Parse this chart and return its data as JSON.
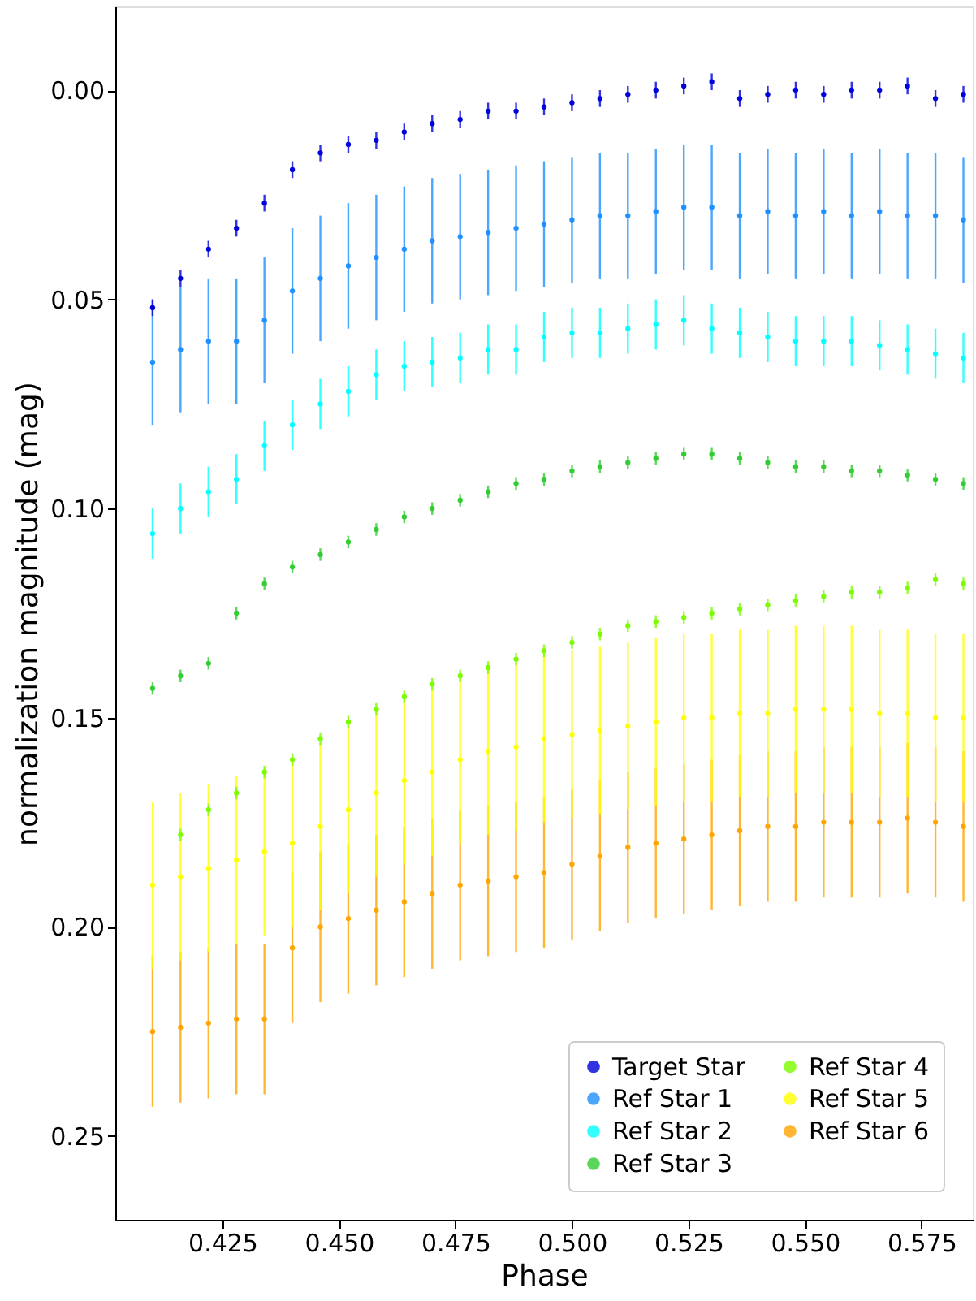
{
  "chart_data": {
    "type": "scatter",
    "xlabel": "Phase",
    "ylabel": "normalization magnitude (mag)",
    "x": [
      0.41,
      0.416,
      0.422,
      0.428,
      0.434,
      0.44,
      0.446,
      0.452,
      0.458,
      0.464,
      0.47,
      0.476,
      0.482,
      0.488,
      0.494,
      0.5,
      0.506,
      0.512,
      0.518,
      0.524,
      0.53,
      0.536,
      0.542,
      0.548,
      0.554,
      0.56,
      0.566,
      0.572,
      0.578,
      0.584
    ],
    "series": [
      {
        "name": "Target Star",
        "color": "#0000dd",
        "values": [
          0.052,
          0.045,
          0.038,
          0.033,
          0.027,
          0.019,
          0.015,
          0.013,
          0.012,
          0.01,
          0.008,
          0.007,
          0.005,
          0.005,
          0.004,
          0.003,
          0.002,
          0.001,
          0.0,
          -0.001,
          -0.002,
          0.002,
          0.001,
          0.0,
          0.001,
          0.0,
          0.0,
          -0.001,
          0.002,
          0.001
        ],
        "errors": [
          0.002,
          0.002,
          0.002,
          0.002,
          0.002,
          0.002,
          0.002,
          0.002,
          0.002,
          0.002,
          0.002,
          0.002,
          0.002,
          0.002,
          0.002,
          0.002,
          0.002,
          0.002,
          0.002,
          0.002,
          0.002,
          0.002,
          0.002,
          0.002,
          0.002,
          0.002,
          0.002,
          0.002,
          0.002,
          0.002
        ]
      },
      {
        "name": "Ref Star 1",
        "color": "#1e90ff",
        "values": [
          0.065,
          0.062,
          0.06,
          0.06,
          0.055,
          0.048,
          0.045,
          0.042,
          0.04,
          0.038,
          0.036,
          0.035,
          0.034,
          0.033,
          0.032,
          0.031,
          0.03,
          0.03,
          0.029,
          0.028,
          0.028,
          0.03,
          0.029,
          0.03,
          0.029,
          0.03,
          0.029,
          0.03,
          0.03,
          0.031
        ],
        "errors": [
          0.015,
          0.015,
          0.015,
          0.015,
          0.015,
          0.015,
          0.015,
          0.015,
          0.015,
          0.015,
          0.015,
          0.015,
          0.015,
          0.015,
          0.015,
          0.015,
          0.015,
          0.015,
          0.015,
          0.015,
          0.015,
          0.015,
          0.015,
          0.015,
          0.015,
          0.015,
          0.015,
          0.015,
          0.015,
          0.015
        ]
      },
      {
        "name": "Ref Star 2",
        "color": "#00ffff",
        "values": [
          0.106,
          0.1,
          0.096,
          0.093,
          0.085,
          0.08,
          0.075,
          0.072,
          0.068,
          0.066,
          0.065,
          0.064,
          0.062,
          0.062,
          0.059,
          0.058,
          0.058,
          0.057,
          0.056,
          0.055,
          0.057,
          0.058,
          0.059,
          0.06,
          0.06,
          0.06,
          0.061,
          0.062,
          0.063,
          0.064
        ],
        "errors": [
          0.006,
          0.006,
          0.006,
          0.006,
          0.006,
          0.006,
          0.006,
          0.006,
          0.006,
          0.006,
          0.006,
          0.006,
          0.006,
          0.006,
          0.006,
          0.006,
          0.006,
          0.006,
          0.006,
          0.006,
          0.006,
          0.006,
          0.006,
          0.006,
          0.006,
          0.006,
          0.006,
          0.006,
          0.006,
          0.006
        ]
      },
      {
        "name": "Ref Star 3",
        "color": "#32cd32",
        "values": [
          0.143,
          0.14,
          0.137,
          0.125,
          0.118,
          0.114,
          0.111,
          0.108,
          0.105,
          0.102,
          0.1,
          0.098,
          0.096,
          0.094,
          0.093,
          0.091,
          0.09,
          0.089,
          0.088,
          0.087,
          0.087,
          0.088,
          0.089,
          0.09,
          0.09,
          0.091,
          0.091,
          0.092,
          0.093,
          0.094
        ],
        "errors": [
          0.0015,
          0.0015,
          0.0015,
          0.0015,
          0.0015,
          0.0015,
          0.0015,
          0.0015,
          0.0015,
          0.0015,
          0.0015,
          0.0015,
          0.0015,
          0.0015,
          0.0015,
          0.0015,
          0.0015,
          0.0015,
          0.0015,
          0.0015,
          0.0015,
          0.0015,
          0.0015,
          0.0015,
          0.0015,
          0.0015,
          0.0015,
          0.0015,
          0.0015,
          0.0015
        ]
      },
      {
        "name": "Ref Star 4",
        "color": "#7cfc00",
        "values": [
          null,
          0.178,
          0.172,
          0.168,
          0.163,
          0.16,
          0.155,
          0.151,
          0.148,
          0.145,
          0.142,
          0.14,
          0.138,
          0.136,
          0.134,
          0.132,
          0.13,
          0.128,
          0.127,
          0.126,
          0.125,
          0.124,
          0.123,
          0.122,
          0.121,
          0.12,
          0.12,
          0.119,
          0.117,
          0.118
        ],
        "errors": [
          null,
          0.0015,
          0.0015,
          0.0015,
          0.0015,
          0.0015,
          0.0015,
          0.0015,
          0.0015,
          0.0015,
          0.0015,
          0.0015,
          0.0015,
          0.0015,
          0.0015,
          0.0015,
          0.0015,
          0.0015,
          0.0015,
          0.0015,
          0.0015,
          0.0015,
          0.0015,
          0.0015,
          0.0015,
          0.0015,
          0.0015,
          0.0015,
          0.0015,
          0.0015
        ]
      },
      {
        "name": "Ref Star 5",
        "color": "#ffff00",
        "values": [
          0.19,
          0.188,
          0.186,
          0.184,
          0.182,
          0.18,
          0.176,
          0.172,
          0.168,
          0.165,
          0.163,
          0.16,
          0.158,
          0.157,
          0.155,
          0.154,
          0.153,
          0.152,
          0.151,
          0.15,
          0.15,
          0.149,
          0.149,
          0.148,
          0.148,
          0.148,
          0.149,
          0.149,
          0.15,
          0.15
        ],
        "errors": [
          0.02,
          0.02,
          0.02,
          0.02,
          0.02,
          0.02,
          0.02,
          0.02,
          0.02,
          0.02,
          0.02,
          0.02,
          0.02,
          0.02,
          0.02,
          0.02,
          0.02,
          0.02,
          0.02,
          0.02,
          0.02,
          0.02,
          0.02,
          0.02,
          0.02,
          0.02,
          0.02,
          0.02,
          0.02,
          0.02
        ]
      },
      {
        "name": "Ref Star 6",
        "color": "#ffa500",
        "values": [
          0.225,
          0.224,
          0.223,
          0.222,
          0.222,
          0.205,
          0.2,
          0.198,
          0.196,
          0.194,
          0.192,
          0.19,
          0.189,
          0.188,
          0.187,
          0.185,
          0.183,
          0.181,
          0.18,
          0.179,
          0.178,
          0.177,
          0.176,
          0.176,
          0.175,
          0.175,
          0.175,
          0.174,
          0.175,
          0.176
        ],
        "errors": [
          0.018,
          0.018,
          0.018,
          0.018,
          0.018,
          0.018,
          0.018,
          0.018,
          0.018,
          0.018,
          0.018,
          0.018,
          0.018,
          0.018,
          0.018,
          0.018,
          0.018,
          0.018,
          0.018,
          0.018,
          0.018,
          0.018,
          0.018,
          0.018,
          0.018,
          0.018,
          0.018,
          0.018,
          0.018,
          0.018
        ]
      }
    ],
    "xlim": [
      0.402,
      0.586
    ],
    "xticks": [
      0.425,
      {
        "value": 0.45,
        "label": "0.450"
      },
      0.475,
      {
        "value": 0.5,
        "label": "0.500"
      },
      0.525,
      {
        "value": 0.55,
        "label": "0.550"
      },
      0.575
    ],
    "ylim": [
      0.27,
      -0.02
    ],
    "yticks": [
      {
        "value": 0,
        "label": "0.00"
      },
      {
        "value": 0.05,
        "label": "0.05"
      },
      {
        "value": 0.1,
        "label": "0.10"
      },
      {
        "value": 0.15,
        "label": "0.15"
      },
      {
        "value": 0.2,
        "label": "0.20"
      },
      {
        "value": 0.25,
        "label": "0.25"
      }
    ],
    "legend": "bottom right",
    "grid": false,
    "marker": "circle"
  }
}
